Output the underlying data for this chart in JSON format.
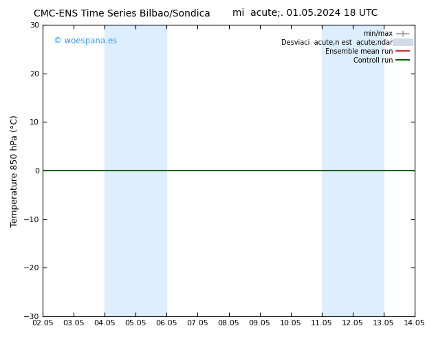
{
  "title_left": "CMC-ENS Time Series Bilbao/Sondica",
  "title_right": "mi  acute;. 01.05.2024 18 UTC",
  "ylabel": "Temperature 850 hPa (°C)",
  "ylim": [
    -30,
    30
  ],
  "yticks": [
    -30,
    -20,
    -10,
    0,
    10,
    20,
    30
  ],
  "xlim_min": 0,
  "xlim_max": 12,
  "xtick_labels": [
    "02.05",
    "03.05",
    "04.05",
    "05.05",
    "06.05",
    "07.05",
    "08.05",
    "09.05",
    "10.05",
    "11.05",
    "12.05",
    "13.05",
    "14.05"
  ],
  "xtick_positions": [
    0,
    1,
    2,
    3,
    4,
    5,
    6,
    7,
    8,
    9,
    10,
    11,
    12
  ],
  "shaded_bands": [
    {
      "xmin": 2,
      "xmax": 4,
      "color": "#ddeeff"
    },
    {
      "xmin": 9,
      "xmax": 11,
      "color": "#ddeeff"
    }
  ],
  "hline_y": 0,
  "hline_color": "#006600",
  "watermark": "© woespana.es",
  "watermark_color": "#3399ff",
  "bg_color": "#ffffff",
  "title_fontsize": 10,
  "axis_fontsize": 9,
  "tick_fontsize": 8
}
